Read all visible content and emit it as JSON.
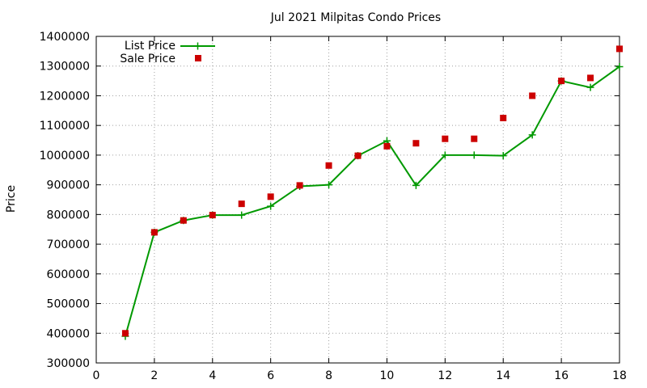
{
  "chart_data": {
    "type": "line",
    "title": "Jul 2021 Milpitas Condo Prices",
    "xlabel": "",
    "ylabel": "Price",
    "xlim": [
      0,
      18
    ],
    "ylim": [
      300000,
      1400000
    ],
    "x_ticks": [
      0,
      2,
      4,
      6,
      8,
      10,
      12,
      14,
      16,
      18
    ],
    "y_ticks": [
      300000,
      400000,
      500000,
      600000,
      700000,
      800000,
      900000,
      1000000,
      1100000,
      1200000,
      1300000,
      1400000
    ],
    "grid": true,
    "legend_position": "top-left",
    "x": [
      1,
      2,
      3,
      4,
      5,
      6,
      7,
      8,
      9,
      10,
      11,
      12,
      13,
      14,
      15,
      16,
      17,
      18
    ],
    "series": [
      {
        "name": "List Price",
        "style": "line+cross",
        "color": "#009900",
        "values": [
          390000,
          740000,
          780000,
          798000,
          798000,
          828000,
          895000,
          900000,
          998000,
          1048000,
          898000,
          1000000,
          1000000,
          998000,
          1068000,
          1250000,
          1228000,
          1298000
        ]
      },
      {
        "name": "Sale Price",
        "style": "square",
        "color": "#cc0000",
        "values": [
          400000,
          740000,
          780000,
          798000,
          836000,
          860000,
          898000,
          965000,
          998000,
          1030000,
          1040000,
          1055000,
          1055000,
          1125000,
          1200000,
          1250000,
          1260000,
          1358000
        ]
      }
    ]
  }
}
